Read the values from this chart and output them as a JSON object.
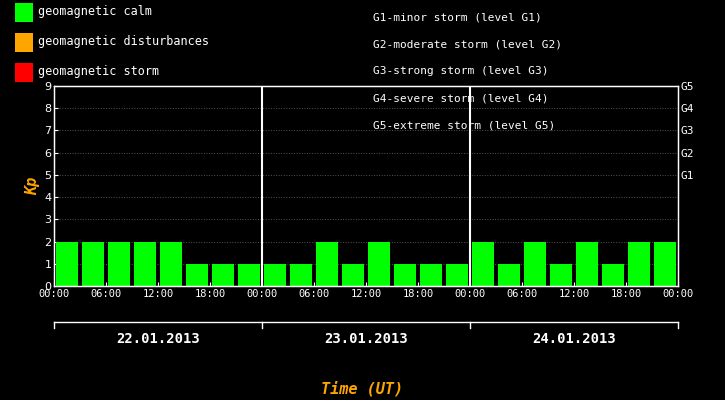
{
  "background_color": "#000000",
  "plot_bg_color": "#000000",
  "bar_color_calm": "#00ff00",
  "bar_color_disturbance": "#ffa500",
  "bar_color_storm": "#ff0000",
  "text_color": "#ffffff",
  "axis_color": "#ffffff",
  "time_label_color": "#ffa500",
  "kp_label_color": "#ffa500",
  "title_legend": [
    [
      "geomagnetic calm",
      "#00ff00"
    ],
    [
      "geomagnetic disturbances",
      "#ffa500"
    ],
    [
      "geomagnetic storm",
      "#ff0000"
    ]
  ],
  "storm_levels": [
    "G1-minor storm (level G1)",
    "G2-moderate storm (level G2)",
    "G3-strong storm (level G3)",
    "G4-severe storm (level G4)",
    "G5-extreme storm (level G5)"
  ],
  "right_labels": [
    "G5",
    "G4",
    "G3",
    "G2",
    "G1"
  ],
  "right_label_yvals": [
    9,
    8,
    7,
    6,
    5
  ],
  "days": [
    "22.01.2013",
    "23.01.2013",
    "24.01.2013"
  ],
  "kp_values": [
    [
      2,
      2,
      2,
      2,
      2,
      1,
      1,
      1
    ],
    [
      1,
      1,
      2,
      1,
      2,
      1,
      1,
      1
    ],
    [
      2,
      1,
      2,
      1,
      2,
      1,
      2,
      2
    ]
  ],
  "ylim": [
    0,
    9
  ],
  "yticks": [
    0,
    1,
    2,
    3,
    4,
    5,
    6,
    7,
    8,
    9
  ],
  "xlabel": "Time (UT)",
  "ylabel": "Kp",
  "xtick_labels": [
    "00:00",
    "06:00",
    "12:00",
    "18:00",
    "00:00",
    "06:00",
    "12:00",
    "18:00",
    "00:00",
    "06:00",
    "12:00",
    "18:00",
    "00:00"
  ],
  "dotted_grid_color": "#555555",
  "font_family": "monospace",
  "bar_width": 0.85
}
